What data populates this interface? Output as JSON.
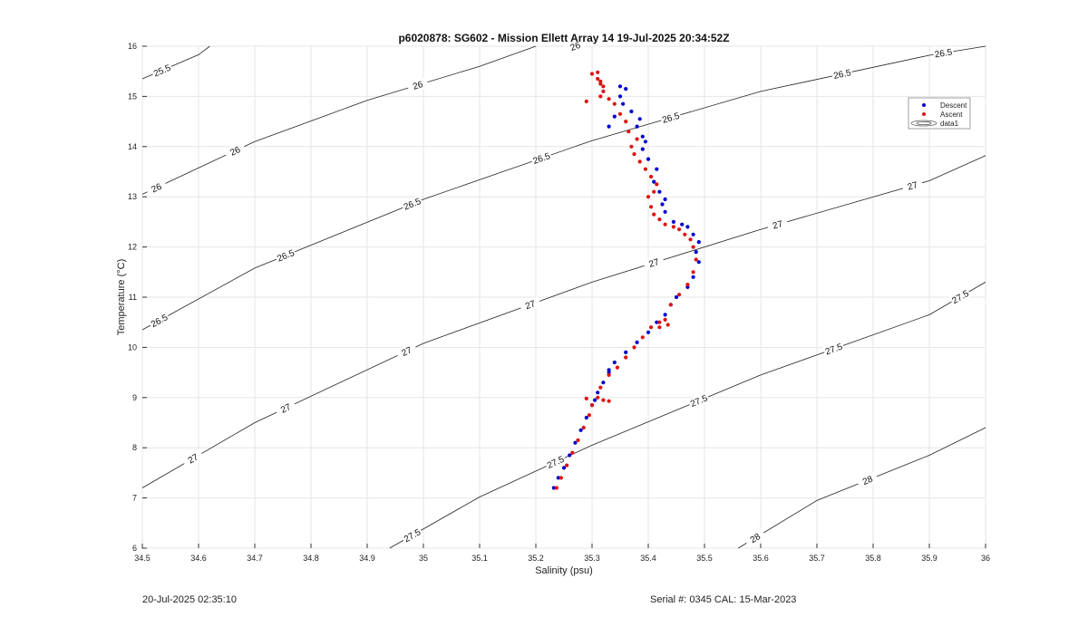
{
  "chart_data": {
    "type": "scatter",
    "title": "p6020878: SG602 - Mission Ellett Array 14 19-Jul-2025 20:34:52Z",
    "xlabel": "Salinity (psu)",
    "ylabel": "Temperature (°C)",
    "xlim": [
      34.5,
      36
    ],
    "ylim": [
      6,
      16
    ],
    "xticks": [
      "34.5",
      "34.6",
      "34.7",
      "34.8",
      "34.9",
      "35",
      "35.1",
      "35.2",
      "35.3",
      "35.4",
      "35.5",
      "35.6",
      "35.7",
      "35.8",
      "35.9",
      "36"
    ],
    "yticks": [
      "6",
      "7",
      "8",
      "9",
      "10",
      "11",
      "12",
      "13",
      "14",
      "15",
      "16"
    ],
    "grid": true,
    "legend_position": "top-right",
    "legend": [
      "Descent",
      "Ascent",
      "data1"
    ],
    "series": [
      {
        "name": "Descent",
        "color": "#0000cc",
        "x": [
          35.232,
          35.24,
          35.25,
          35.26,
          35.27,
          35.28,
          35.29,
          35.3,
          35.305,
          35.31,
          35.32,
          35.33,
          35.33,
          35.34,
          35.36,
          35.38,
          35.4,
          35.415,
          35.43,
          35.44,
          35.45,
          35.47,
          35.48,
          35.49,
          35.485,
          35.49,
          35.48,
          35.47,
          35.46,
          35.445,
          35.43,
          35.425,
          35.43,
          35.42,
          35.41,
          35.415,
          35.4,
          35.39,
          35.395,
          35.39,
          35.38,
          35.385,
          35.37,
          35.355,
          35.35,
          35.36,
          35.35,
          35.34,
          35.33
        ],
        "y": [
          7.2,
          7.4,
          7.6,
          7.85,
          8.1,
          8.35,
          8.6,
          8.85,
          8.95,
          9.1,
          9.3,
          9.5,
          9.55,
          9.7,
          9.9,
          10.1,
          10.3,
          10.5,
          10.65,
          10.85,
          11.0,
          11.2,
          11.4,
          11.7,
          11.9,
          12.1,
          12.25,
          12.4,
          12.45,
          12.5,
          12.7,
          12.85,
          12.95,
          13.1,
          13.3,
          13.55,
          13.75,
          13.95,
          14.1,
          14.2,
          14.4,
          14.55,
          14.7,
          14.85,
          15.0,
          15.15,
          15.2,
          14.6,
          14.4
        ]
      },
      {
        "name": "Ascent",
        "color": "#dd1111",
        "x": [
          35.237,
          35.245,
          35.255,
          35.265,
          35.275,
          35.285,
          35.295,
          35.3,
          35.29,
          35.31,
          35.32,
          35.33,
          35.315,
          35.33,
          35.345,
          35.36,
          35.375,
          35.39,
          35.405,
          35.42,
          35.43,
          35.435,
          35.42,
          35.44,
          35.455,
          35.47,
          35.48,
          35.485,
          35.48,
          35.475,
          35.465,
          35.455,
          35.445,
          35.43,
          35.42,
          35.41,
          35.405,
          35.4,
          35.41,
          35.415,
          35.405,
          35.395,
          35.385,
          35.375,
          35.37,
          35.38,
          35.365,
          35.36,
          35.35,
          35.34,
          35.33,
          35.32,
          35.315,
          35.31,
          35.3,
          35.31,
          35.315,
          35.32,
          35.315,
          35.29
        ],
        "y": [
          7.2,
          7.4,
          7.65,
          7.9,
          8.15,
          8.4,
          8.65,
          8.85,
          8.98,
          9.0,
          8.95,
          8.93,
          9.2,
          9.45,
          9.6,
          9.8,
          10.0,
          10.2,
          10.4,
          10.5,
          10.55,
          10.45,
          10.4,
          10.85,
          11.05,
          11.25,
          11.5,
          11.75,
          12.0,
          12.15,
          12.25,
          12.35,
          12.4,
          12.45,
          12.55,
          12.65,
          12.8,
          13.0,
          13.1,
          13.25,
          13.4,
          13.55,
          13.7,
          13.85,
          14.0,
          14.15,
          14.3,
          14.5,
          14.65,
          14.85,
          14.95,
          15.1,
          15.25,
          15.35,
          15.45,
          15.48,
          15.3,
          15.2,
          15.0,
          14.9
        ]
      }
    ],
    "contour_labels": [
      "25.5",
      "26",
      "26.5",
      "27",
      "27.5",
      "28"
    ]
  },
  "footer": {
    "timestamp": "20-Jul-2025 02:35:10",
    "serial": "Serial #: 0345  CAL: 15-Mar-2023"
  }
}
